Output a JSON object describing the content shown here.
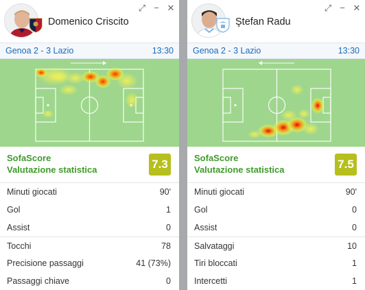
{
  "left": {
    "player_name": "Domenico Criscito",
    "match": "Genoa 2 - 3 Lazio",
    "time": "13:30",
    "brand": "SofaScore",
    "rating_label": "Valutazione statistica",
    "rating": "7.3",
    "stats": [
      {
        "label": "Minuti giocati",
        "value": "90'"
      },
      {
        "label": "Gol",
        "value": "1"
      },
      {
        "label": "Assist",
        "value": "0"
      },
      {
        "label": "Tocchi",
        "value": "78"
      },
      {
        "label": "Precisione passaggi",
        "value": "41 (73%)"
      },
      {
        "label": "Passaggi chiave",
        "value": "0"
      }
    ]
  },
  "right": {
    "player_name": "Ştefan Radu",
    "match": "Genoa 2 - 3 Lazio",
    "time": "13:30",
    "brand": "SofaScore",
    "rating_label": "Valutazione statistica",
    "rating": "7.5",
    "stats": [
      {
        "label": "Minuti giocati",
        "value": "90'"
      },
      {
        "label": "Gol",
        "value": "0"
      },
      {
        "label": "Assist",
        "value": "0"
      },
      {
        "label": "Salvataggi",
        "value": "10"
      },
      {
        "label": "Tiri bloccati",
        "value": "1"
      },
      {
        "label": "Intercetti",
        "value": "1"
      }
    ]
  },
  "controls": {
    "expand": "⤢",
    "minimize": "−",
    "close": "✕"
  },
  "colors": {
    "accent_green": "#3f9b2a",
    "rating_badge": "#b6bf1d",
    "match_link": "#1a6bb8",
    "pitch": "#9ed68d"
  },
  "icons": {
    "left_crest": "genoa-crest-icon",
    "right_crest": "lazio-crest-icon"
  }
}
